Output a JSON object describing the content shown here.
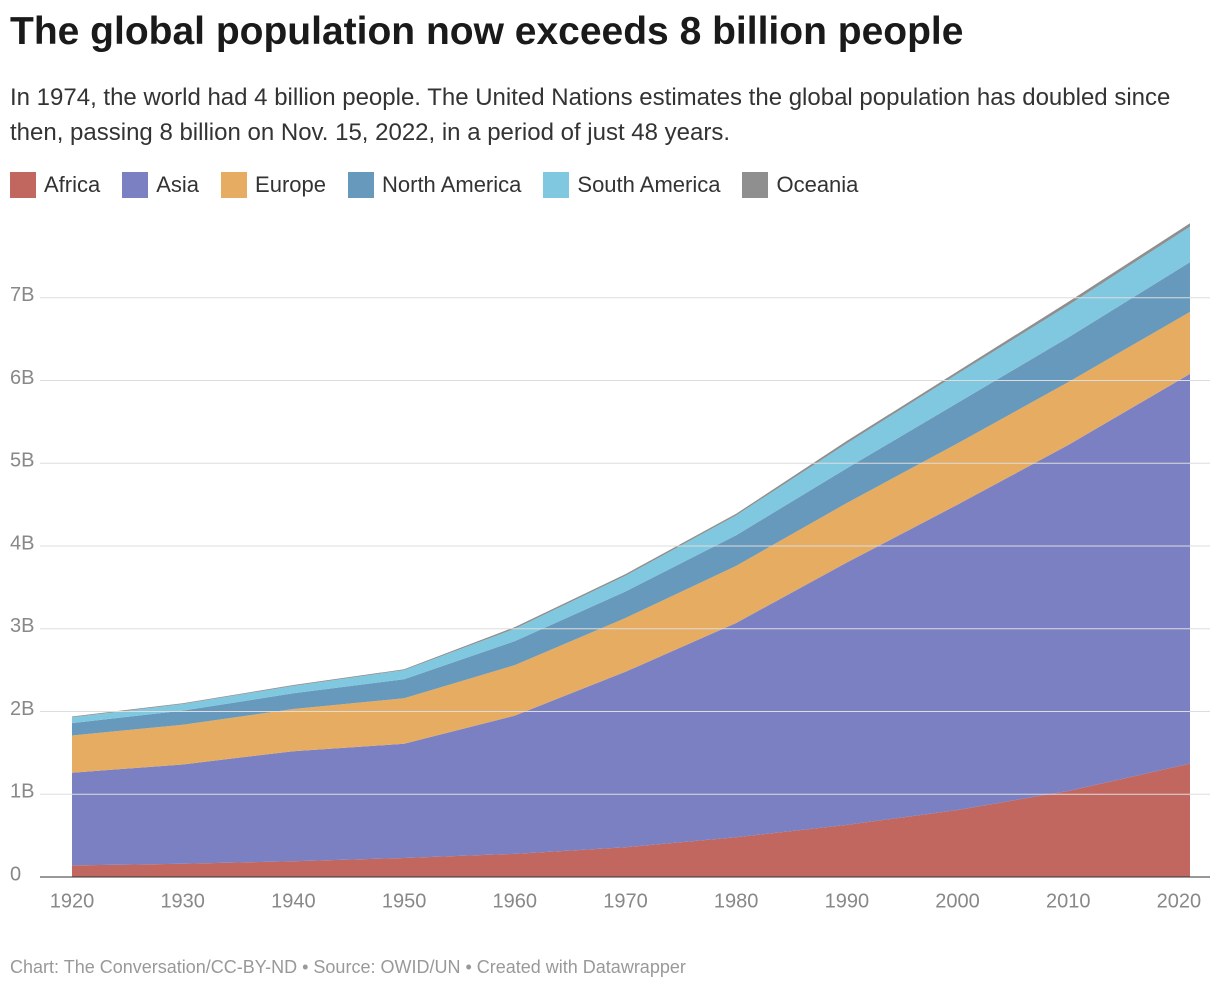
{
  "chart_data": {
    "type": "stacked-area",
    "title": "The global population now exceeds 8 billion people",
    "subtitle": "In 1974, the world had 4 billion people. The United Nations estimates the global population has doubled since then, passing 8 billion on Nov. 15, 2022, in a period of just 48 years.",
    "footer": "Chart: The Conversation/CC-BY-ND • Source: OWID/UN • Created with Datawrapper",
    "x": [
      1920,
      1930,
      1940,
      1950,
      1960,
      1970,
      1980,
      1990,
      2000,
      2010,
      2021
    ],
    "series": [
      {
        "name": "Africa",
        "color": "#c1675f",
        "values": [
          0.14,
          0.16,
          0.19,
          0.23,
          0.28,
          0.36,
          0.48,
          0.63,
          0.81,
          1.04,
          1.37
        ]
      },
      {
        "name": "Asia",
        "color": "#7a80c2",
        "values": [
          1.12,
          1.2,
          1.33,
          1.38,
          1.67,
          2.12,
          2.59,
          3.17,
          3.69,
          4.18,
          4.71
        ]
      },
      {
        "name": "Europe",
        "color": "#e5ac62",
        "values": [
          0.45,
          0.48,
          0.51,
          0.55,
          0.61,
          0.65,
          0.69,
          0.72,
          0.74,
          0.76,
          0.75
        ]
      },
      {
        "name": "North America",
        "color": "#6699bb",
        "values": [
          0.15,
          0.17,
          0.19,
          0.23,
          0.29,
          0.32,
          0.37,
          0.42,
          0.49,
          0.54,
          0.6
        ]
      },
      {
        "name": "South America",
        "color": "#80c8e0",
        "values": [
          0.07,
          0.08,
          0.09,
          0.11,
          0.15,
          0.19,
          0.24,
          0.3,
          0.35,
          0.39,
          0.43
        ]
      },
      {
        "name": "Oceania",
        "color": "#8f8f8f",
        "values": [
          0.01,
          0.01,
          0.01,
          0.01,
          0.02,
          0.02,
          0.02,
          0.03,
          0.03,
          0.04,
          0.04
        ]
      }
    ],
    "xlim": [
      1920,
      2021
    ],
    "xticks": [
      1920,
      1930,
      1940,
      1950,
      1960,
      1970,
      1980,
      1990,
      2000,
      2010,
      2020
    ],
    "ylim": [
      0,
      8
    ],
    "yticks": [
      0,
      {
        "value": 1,
        "label": "1B"
      },
      {
        "value": 2,
        "label": "2B"
      },
      {
        "value": 3,
        "label": "3B"
      },
      {
        "value": 4,
        "label": "4B"
      },
      {
        "value": 5,
        "label": "5B"
      },
      {
        "value": 6,
        "label": "6B"
      },
      {
        "value": 7,
        "label": "7B"
      }
    ],
    "grid": true
  }
}
